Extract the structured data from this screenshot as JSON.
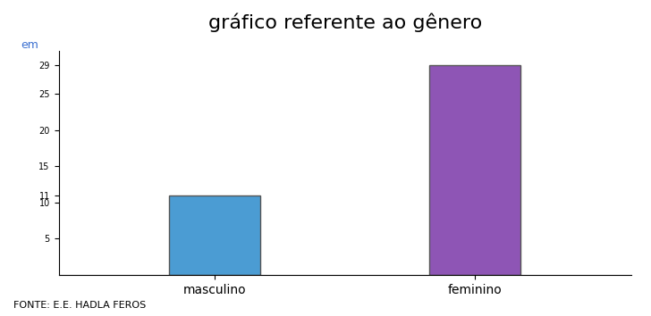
{
  "chart_data": {
    "type": "bar",
    "title": "gráfico referente ao gênero",
    "y_label": "em",
    "categories": [
      "masculino",
      "feminino"
    ],
    "values": [
      11,
      29
    ],
    "colors": [
      "#4b9cd3",
      "#8e55b5"
    ],
    "ylim": [
      0,
      31
    ],
    "yticks": [
      5,
      10,
      11,
      15,
      20,
      25,
      29
    ],
    "grid": false,
    "annotations": [
      "FONTE: E.E. HADLA FEROS"
    ]
  }
}
